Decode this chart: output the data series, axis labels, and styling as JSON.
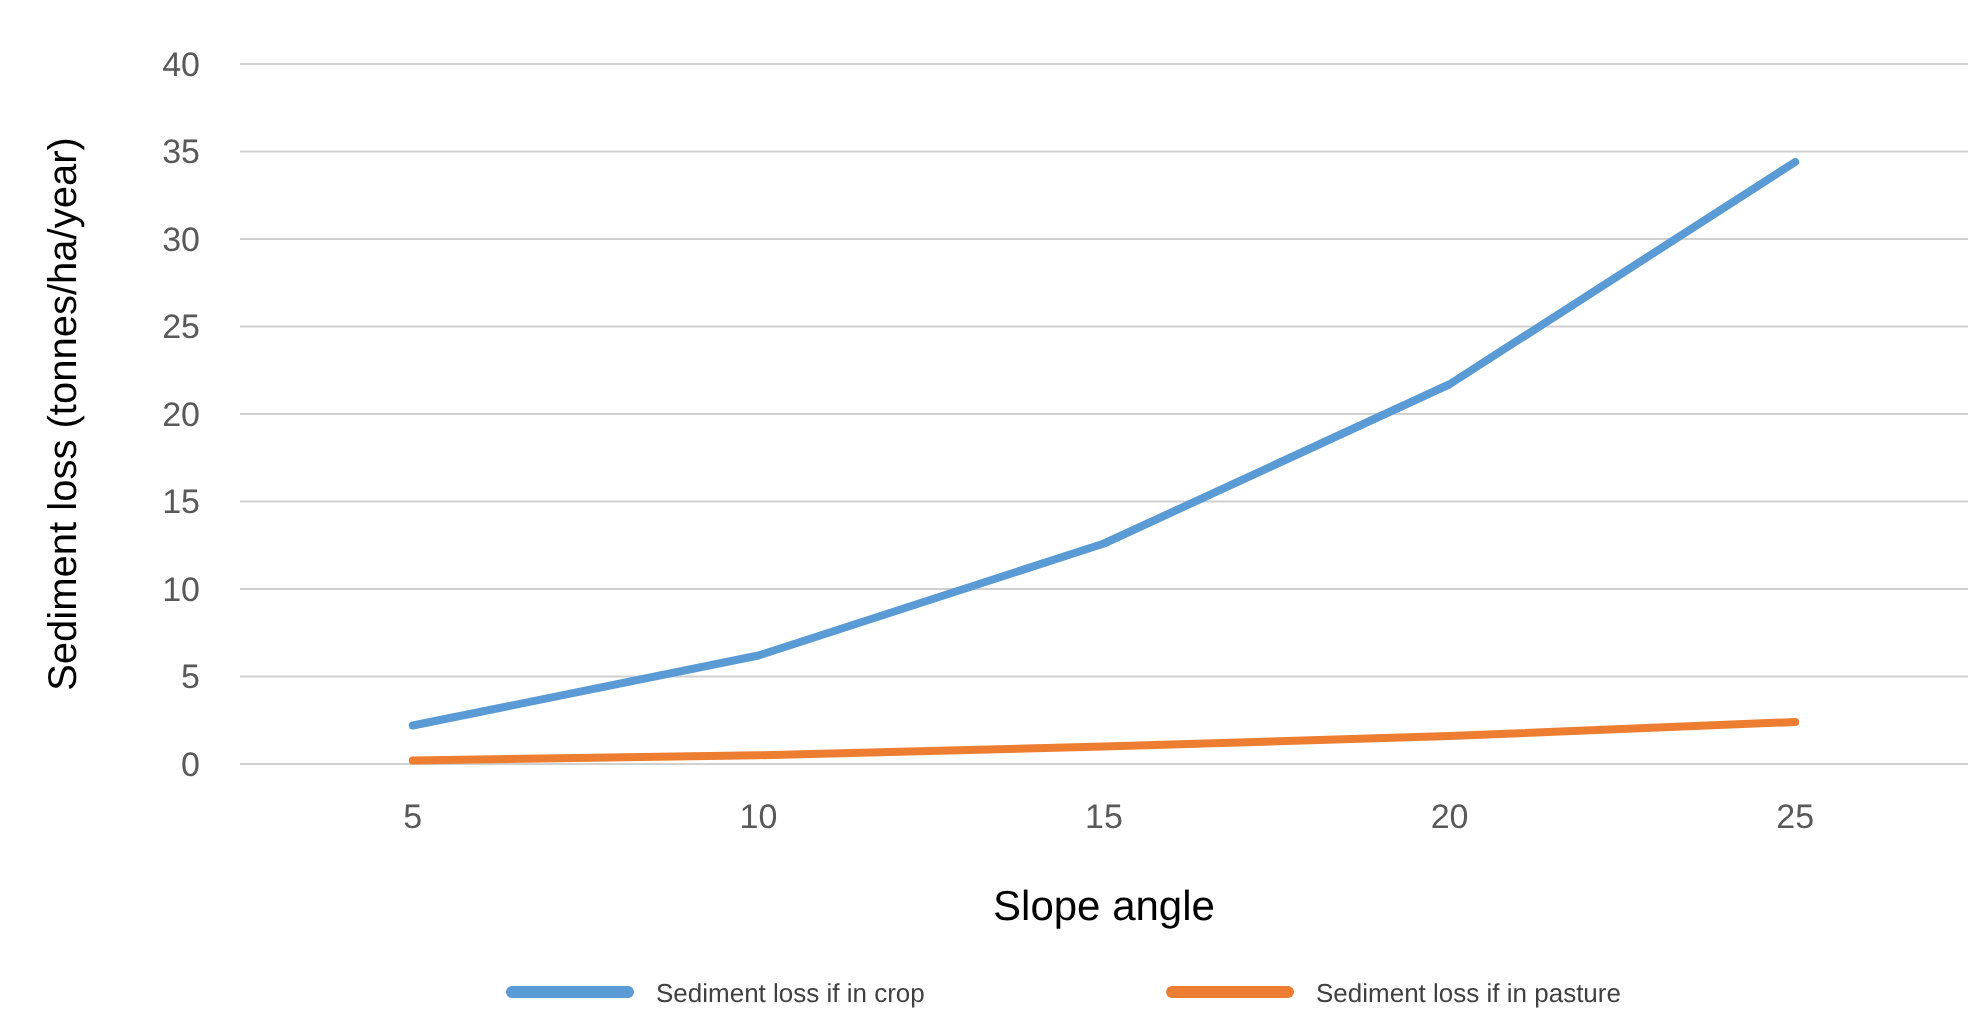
{
  "chart_data": {
    "type": "line",
    "xlabel": "Slope angle",
    "ylabel": "Sediment loss (tonnes/ha/year)",
    "categories": [
      "5",
      "10",
      "15",
      "20",
      "25"
    ],
    "series": [
      {
        "name": "Sediment loss if in crop",
        "color": "#5b9bd5",
        "values": [
          2.2,
          6.2,
          12.6,
          21.7,
          34.4
        ]
      },
      {
        "name": "Sediment loss if in pasture",
        "color": "#ed7d31",
        "values": [
          0.2,
          0.5,
          1.0,
          1.6,
          2.4
        ]
      }
    ],
    "ylim": [
      0,
      40
    ],
    "yticks": [
      0,
      5,
      10,
      15,
      20,
      25,
      30,
      35,
      40
    ],
    "grid": "y",
    "legend": "bottom",
    "marker": "none",
    "line_style": "solid"
  }
}
